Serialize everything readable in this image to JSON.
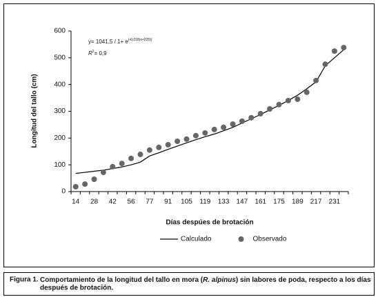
{
  "chart_data": {
    "type": "line",
    "equation": "y= 1041,5 / 1+ e",
    "equation_exponent": "(-0,018(x+225))",
    "r2_label": "R",
    "r2_exponent": "2",
    "r2_value": "= 0,9",
    "ylabel": "Longitud del tallo (cm)",
    "xlabel": "Días despúes de brotación",
    "categories": [
      "14",
      null,
      "28",
      null,
      "42",
      null,
      "56",
      null,
      "77",
      null,
      "91",
      null,
      "105",
      null,
      "119",
      null,
      "133",
      null,
      "147",
      null,
      "161",
      null,
      "175",
      null,
      "189",
      null,
      "217",
      null,
      "231",
      null
    ],
    "ylim": [
      0,
      600
    ],
    "yticks": [
      0,
      100,
      200,
      300,
      400,
      500,
      600
    ],
    "legend": "bottom",
    "series": [
      {
        "name": "Calculado",
        "type": "line",
        "color": "#000000",
        "values": [
          68,
          72,
          76,
          80,
          86,
          92,
          100,
          110,
          133,
          145,
          158,
          170,
          182,
          194,
          205,
          215,
          227,
          240,
          256,
          272,
          288,
          305,
          322,
          340,
          360,
          384,
          410,
          470,
          500,
          530
        ]
      },
      {
        "name": "Observado",
        "type": "scatter",
        "color": "#666666",
        "values": [
          18,
          28,
          46,
          72,
          93,
          105,
          124,
          139,
          155,
          165,
          175,
          188,
          196,
          209,
          219,
          232,
          240,
          252,
          263,
          276,
          291,
          309,
          325,
          340,
          345,
          371,
          415,
          476,
          525,
          538
        ]
      }
    ]
  },
  "caption": {
    "label": "Figura 1.",
    "text_before": "Comportamiento de la longitud del tallo en mora (",
    "italic": "R. alpinus",
    "text_after": ") sin labores de poda, respecto a los días",
    "line2": "después de brotación."
  }
}
